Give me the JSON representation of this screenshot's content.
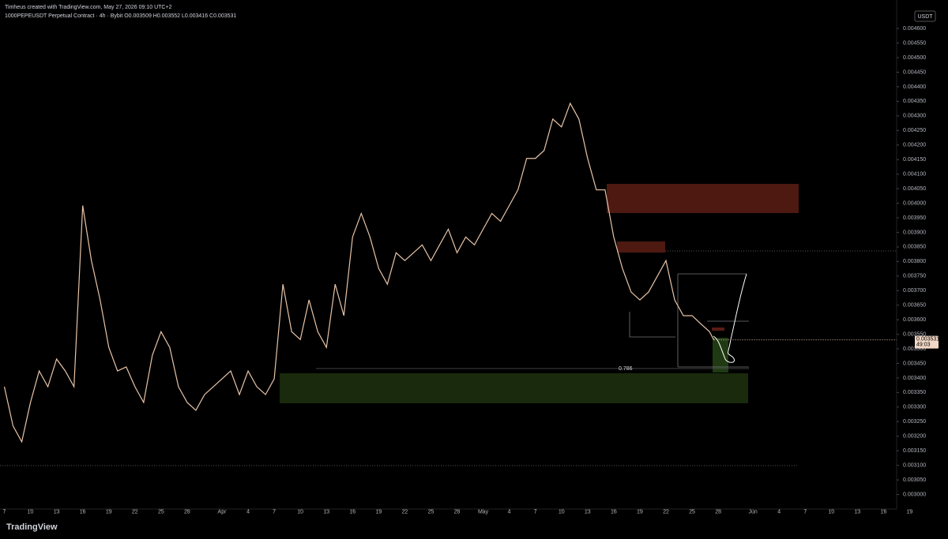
{
  "chart_data": {
    "type": "line",
    "title": "Timheus created with TradingView.com, May 27, 2026 09:10 UTC+2",
    "subtitle": "1000PEPEUSDT Perpetual Contract · 4h · Bybit  O0.003509 H0.003552 L0.003416 C0.003531",
    "currency": "USDT",
    "price_label": "0.003531",
    "countdown": "49:03",
    "fib_label": "0.786",
    "brand": "TradingView",
    "color": "#e8c4a8",
    "x": [
      0,
      1,
      2,
      3,
      4,
      5,
      6,
      7,
      8,
      9,
      10,
      11,
      12,
      13,
      14,
      15,
      16,
      17,
      18,
      19,
      20,
      21,
      22,
      23,
      24,
      25,
      26,
      27,
      28,
      29,
      30,
      31,
      32,
      33,
      34,
      35,
      36,
      37,
      38,
      39,
      40,
      41,
      42,
      43,
      44,
      45,
      46,
      47,
      48,
      49,
      50,
      51,
      52,
      53,
      54,
      55,
      56,
      57,
      58,
      59,
      60,
      61,
      62,
      63,
      64,
      65,
      66,
      67,
      68,
      69,
      70,
      71,
      72,
      73,
      74,
      75,
      76,
      77,
      78,
      79,
      80,
      81,
      81.5
    ],
    "values": [
      0.00337,
      0.003235,
      0.003181,
      0.003316,
      0.003424,
      0.00337,
      0.003465,
      0.003424,
      0.00337,
      0.003992,
      0.003803,
      0.003668,
      0.003505,
      0.003424,
      0.003438,
      0.00337,
      0.003316,
      0.003478,
      0.003559,
      0.003505,
      0.00337,
      0.003316,
      0.003289,
      0.003343,
      0.00337,
      0.003397,
      0.003424,
      0.003343,
      0.003424,
      0.00337,
      0.003343,
      0.003397,
      0.003722,
      0.003559,
      0.003532,
      0.003668,
      0.003559,
      0.003505,
      0.003722,
      0.003614,
      0.003884,
      0.003965,
      0.003884,
      0.003776,
      0.003722,
      0.00383,
      0.003803,
      0.00383,
      0.003857,
      0.003803,
      0.003857,
      0.003911,
      0.00383,
      0.003884,
      0.003857,
      0.003911,
      0.003965,
      0.003938,
      0.003992,
      0.004046,
      0.004154,
      0.004154,
      0.004181,
      0.004289,
      0.004262,
      0.004343,
      0.004289,
      0.004154,
      0.004046,
      0.004046,
      0.003884,
      0.003776,
      0.003695,
      0.003668,
      0.003695,
      0.003749,
      0.003803,
      0.003668,
      0.003614,
      0.003614,
      0.003586,
      0.003559,
      0.003531
    ],
    "xlim": [
      -0.5,
      102.5
    ],
    "xticks": [
      {
        "value": 0,
        "label": "7"
      },
      {
        "value": 3,
        "label": "10"
      },
      {
        "value": 6,
        "label": "13"
      },
      {
        "value": 9,
        "label": "16"
      },
      {
        "value": 12,
        "label": "19"
      },
      {
        "value": 15,
        "label": "22"
      },
      {
        "value": 18,
        "label": "25"
      },
      {
        "value": 21,
        "label": "28"
      },
      {
        "value": 25,
        "label": "Apr"
      },
      {
        "value": 28,
        "label": "4"
      },
      {
        "value": 31,
        "label": "7"
      },
      {
        "value": 34,
        "label": "10"
      },
      {
        "value": 37,
        "label": "13"
      },
      {
        "value": 40,
        "label": "16"
      },
      {
        "value": 43,
        "label": "19"
      },
      {
        "value": 46,
        "label": "22"
      },
      {
        "value": 49,
        "label": "25"
      },
      {
        "value": 52,
        "label": "28"
      },
      {
        "value": 55,
        "label": "May"
      },
      {
        "value": 58,
        "label": "4"
      },
      {
        "value": 61,
        "label": "7"
      },
      {
        "value": 64,
        "label": "10"
      },
      {
        "value": 67,
        "label": "13"
      },
      {
        "value": 70,
        "label": "16"
      },
      {
        "value": 73,
        "label": "19"
      },
      {
        "value": 76,
        "label": "22"
      },
      {
        "value": 79,
        "label": "25"
      },
      {
        "value": 82,
        "label": "28"
      },
      {
        "value": 86,
        "label": "Jun"
      },
      {
        "value": 89,
        "label": "4"
      },
      {
        "value": 92,
        "label": "7"
      },
      {
        "value": 95,
        "label": "10"
      },
      {
        "value": 98,
        "label": "13"
      },
      {
        "value": 101,
        "label": "16"
      },
      {
        "value": 104,
        "label": "19"
      }
    ],
    "ylim": [
      0.00295,
      0.00466
    ],
    "yticks": [
      {
        "value": 0.003,
        "label": "0.003000"
      },
      {
        "value": 0.00305,
        "label": "0.003050"
      },
      {
        "value": 0.0031,
        "label": "0.003100"
      },
      {
        "value": 0.00315,
        "label": "0.003150"
      },
      {
        "value": 0.0032,
        "label": "0.003200"
      },
      {
        "value": 0.00325,
        "label": "0.003250"
      },
      {
        "value": 0.0033,
        "label": "0.003300"
      },
      {
        "value": 0.00335,
        "label": "0.003350"
      },
      {
        "value": 0.0034,
        "label": "0.003400"
      },
      {
        "value": 0.00345,
        "label": "0.003450"
      },
      {
        "value": 0.0035,
        "label": "0.003500"
      },
      {
        "value": 0.00355,
        "label": "0.003550"
      },
      {
        "value": 0.0036,
        "label": "0.003600"
      },
      {
        "value": 0.00365,
        "label": "0.003650"
      },
      {
        "value": 0.0037,
        "label": "0.003700"
      },
      {
        "value": 0.00375,
        "label": "0.003750"
      },
      {
        "value": 0.0038,
        "label": "0.003800"
      },
      {
        "value": 0.00385,
        "label": "0.003850"
      },
      {
        "value": 0.0039,
        "label": "0.003900"
      },
      {
        "value": 0.00395,
        "label": "0.003950"
      },
      {
        "value": 0.004,
        "label": "0.004000"
      },
      {
        "value": 0.00405,
        "label": "0.004050"
      },
      {
        "value": 0.0041,
        "label": "0.004100"
      },
      {
        "value": 0.00415,
        "label": "0.004150"
      },
      {
        "value": 0.0042,
        "label": "0.004200"
      },
      {
        "value": 0.00425,
        "label": "0.004250"
      },
      {
        "value": 0.0043,
        "label": "0.004300"
      },
      {
        "value": 0.00435,
        "label": "0.004350"
      },
      {
        "value": 0.0044,
        "label": "0.004400"
      },
      {
        "value": 0.00445,
        "label": "0.004450"
      },
      {
        "value": 0.0045,
        "label": "0.004500"
      },
      {
        "value": 0.00455,
        "label": "0.004550"
      },
      {
        "value": 0.0046,
        "label": "0.004600"
      }
    ],
    "grid": false
  }
}
